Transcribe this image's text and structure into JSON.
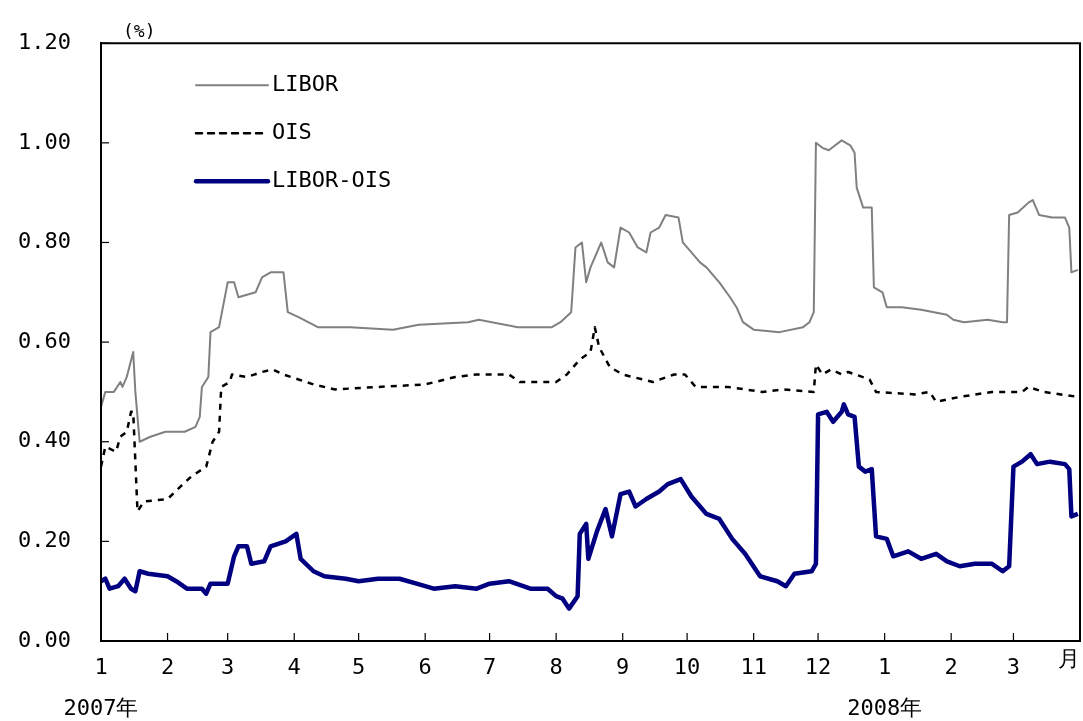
{
  "chart_data": {
    "type": "line",
    "ylabel": "(%)",
    "xlabel": "月",
    "xlim": [
      "2007-01-01",
      "2008-04-01"
    ],
    "xticks": [
      {
        "value": "2007-01-01",
        "label": "1\n2007年"
      },
      {
        "value": "2007-02-01",
        "label": "2"
      },
      {
        "value": "2007-03-01",
        "label": "3"
      },
      {
        "value": "2007-04-01",
        "label": "4"
      },
      {
        "value": "2007-05-01",
        "label": "5"
      },
      {
        "value": "2007-06-01",
        "label": "6"
      },
      {
        "value": "2007-07-01",
        "label": "7"
      },
      {
        "value": "2007-08-01",
        "label": "8"
      },
      {
        "value": "2007-09-01",
        "label": "9"
      },
      {
        "value": "2007-10-01",
        "label": "10"
      },
      {
        "value": "2007-11-01",
        "label": "11"
      },
      {
        "value": "2007-12-01",
        "label": "12"
      },
      {
        "value": "2008-01-01",
        "label": "1\n2008年"
      },
      {
        "value": "2008-02-01",
        "label": "2"
      },
      {
        "value": "2008-03-01",
        "label": "3"
      }
    ],
    "ylim": [
      0,
      1.2
    ],
    "yticks": [
      {
        "value": 0,
        "label": "0.00"
      },
      {
        "value": 0.2,
        "label": "0.20"
      },
      {
        "value": 0.4,
        "label": "0.40"
      },
      {
        "value": 0.6,
        "label": "0.60"
      },
      {
        "value": 0.8,
        "label": "0.80"
      },
      {
        "value": 1.0,
        "label": "1.00"
      },
      {
        "value": 1.2,
        "label": "1.20"
      }
    ],
    "grid": false,
    "legend": "top left",
    "marker": "none",
    "series": [
      {
        "name": "LIBOR",
        "color": "#808080",
        "line_style": "solid",
        "x": [
          "2007-01-01",
          "2007-01-03",
          "2007-01-07",
          "2007-01-10",
          "2007-01-11",
          "2007-01-13",
          "2007-01-16",
          "2007-01-17",
          "2007-01-19",
          "2007-01-24",
          "2007-01-31",
          "2007-02-09",
          "2007-02-14",
          "2007-02-16",
          "2007-02-17",
          "2007-02-20",
          "2007-02-21",
          "2007-02-25",
          "2007-03-01",
          "2007-03-04",
          "2007-03-06",
          "2007-03-14",
          "2007-03-17",
          "2007-03-21",
          "2007-03-27",
          "2007-03-29",
          "2007-04-03",
          "2007-04-12",
          "2007-04-27",
          "2007-05-17",
          "2007-05-29",
          "2007-06-21",
          "2007-06-26",
          "2007-07-14",
          "2007-07-30",
          "2007-08-03",
          "2007-08-08",
          "2007-08-10",
          "2007-08-13",
          "2007-08-15",
          "2007-08-17",
          "2007-08-22",
          "2007-08-25",
          "2007-08-28",
          "2007-08-31",
          "2007-09-04",
          "2007-09-08",
          "2007-09-12",
          "2007-09-14",
          "2007-09-18",
          "2007-09-21",
          "2007-09-27",
          "2007-09-29",
          "2007-10-03",
          "2007-10-07",
          "2007-10-10",
          "2007-10-16",
          "2007-10-21",
          "2007-10-24",
          "2007-10-27",
          "2007-11-01",
          "2007-11-13",
          "2007-11-24",
          "2007-11-27",
          "2007-11-29",
          "2007-11-30",
          "2007-12-03",
          "2007-12-06",
          "2007-12-09",
          "2007-12-12",
          "2007-12-16",
          "2007-12-18",
          "2007-12-19",
          "2007-12-22",
          "2007-12-26",
          "2007-12-27",
          "2007-12-31",
          "2008-01-02",
          "2008-01-09",
          "2008-01-18",
          "2008-01-30",
          "2008-02-02",
          "2008-02-07",
          "2008-02-18",
          "2008-02-25",
          "2008-02-27",
          "2008-02-28",
          "2008-03-03",
          "2008-03-08",
          "2008-03-10",
          "2008-03-13",
          "2008-03-19",
          "2008-03-25",
          "2008-03-27",
          "2008-03-28",
          "2008-03-31"
        ],
        "values": [
          0.47,
          0.5,
          0.5,
          0.52,
          0.51,
          0.53,
          0.58,
          0.5,
          0.4,
          0.41,
          0.42,
          0.42,
          0.43,
          0.45,
          0.51,
          0.53,
          0.62,
          0.63,
          0.72,
          0.72,
          0.69,
          0.7,
          0.73,
          0.74,
          0.74,
          0.66,
          0.65,
          0.63,
          0.63,
          0.625,
          0.635,
          0.64,
          0.645,
          0.63,
          0.63,
          0.64,
          0.66,
          0.79,
          0.8,
          0.72,
          0.75,
          0.8,
          0.76,
          0.75,
          0.83,
          0.82,
          0.79,
          0.78,
          0.82,
          0.83,
          0.855,
          0.85,
          0.8,
          0.78,
          0.76,
          0.75,
          0.72,
          0.69,
          0.67,
          0.64,
          0.625,
          0.62,
          0.63,
          0.64,
          0.66,
          1.0,
          0.99,
          0.985,
          0.995,
          1.005,
          0.995,
          0.98,
          0.91,
          0.87,
          0.87,
          0.71,
          0.7,
          0.67,
          0.67,
          0.665,
          0.655,
          0.645,
          0.64,
          0.645,
          0.64,
          0.64,
          0.855,
          0.86,
          0.88,
          0.885,
          0.855,
          0.85,
          0.85,
          0.83,
          0.74,
          0.745
        ]
      },
      {
        "name": "OIS",
        "color": "#000000",
        "line_style": "dashed",
        "x": [
          "2007-01-01",
          "2007-01-03",
          "2007-01-08",
          "2007-01-10",
          "2007-01-13",
          "2007-01-15",
          "2007-01-16",
          "2007-01-18",
          "2007-01-21",
          "2007-02-01",
          "2007-02-07",
          "2007-02-12",
          "2007-02-19",
          "2007-02-22",
          "2007-02-25",
          "2007-02-26",
          "2007-03-02",
          "2007-03-03",
          "2007-03-10",
          "2007-03-17",
          "2007-03-22",
          "2007-03-27",
          "2007-04-10",
          "2007-04-20",
          "2007-05-10",
          "2007-06-01",
          "2007-06-15",
          "2007-06-25",
          "2007-07-10",
          "2007-07-15",
          "2007-08-01",
          "2007-08-06",
          "2007-08-12",
          "2007-08-17",
          "2007-08-19",
          "2007-08-21",
          "2007-08-26",
          "2007-09-01",
          "2007-09-15",
          "2007-09-25",
          "2007-09-30",
          "2007-10-05",
          "2007-10-20",
          "2007-11-05",
          "2007-11-15",
          "2007-11-29",
          "2007-11-30",
          "2007-12-03",
          "2007-12-07",
          "2007-12-12",
          "2007-12-15",
          "2007-12-25",
          "2007-12-28",
          "2008-01-15",
          "2008-01-22",
          "2008-01-25",
          "2008-02-05",
          "2008-02-20",
          "2008-03-05",
          "2008-03-08",
          "2008-03-15",
          "2008-03-31"
        ],
        "values": [
          0.35,
          0.39,
          0.38,
          0.41,
          0.42,
          0.46,
          0.46,
          0.26,
          0.28,
          0.285,
          0.31,
          0.33,
          0.35,
          0.4,
          0.42,
          0.51,
          0.52,
          0.535,
          0.53,
          0.54,
          0.545,
          0.535,
          0.515,
          0.505,
          0.51,
          0.515,
          0.53,
          0.535,
          0.535,
          0.52,
          0.52,
          0.535,
          0.565,
          0.58,
          0.63,
          0.59,
          0.55,
          0.535,
          0.52,
          0.535,
          0.535,
          0.51,
          0.51,
          0.5,
          0.505,
          0.5,
          0.555,
          0.535,
          0.545,
          0.535,
          0.54,
          0.525,
          0.5,
          0.495,
          0.5,
          0.48,
          0.49,
          0.5,
          0.5,
          0.51,
          0.5,
          0.49
        ]
      },
      {
        "name": "LIBOR-OIS",
        "color": "#000080",
        "line_style": "solid",
        "x": [
          "2007-01-01",
          "2007-01-03",
          "2007-01-05",
          "2007-01-09",
          "2007-01-12",
          "2007-01-15",
          "2007-01-17",
          "2007-01-19",
          "2007-01-23",
          "2007-02-01",
          "2007-02-05",
          "2007-02-10",
          "2007-02-17",
          "2007-02-19",
          "2007-02-21",
          "2007-03-01",
          "2007-03-04",
          "2007-03-06",
          "2007-03-10",
          "2007-03-12",
          "2007-03-18",
          "2007-03-21",
          "2007-03-28",
          "2007-04-02",
          "2007-04-04",
          "2007-04-10",
          "2007-04-15",
          "2007-04-25",
          "2007-05-01",
          "2007-05-10",
          "2007-05-20",
          "2007-05-28",
          "2007-06-05",
          "2007-06-15",
          "2007-06-25",
          "2007-07-01",
          "2007-07-10",
          "2007-07-20",
          "2007-07-28",
          "2007-08-01",
          "2007-08-04",
          "2007-08-07",
          "2007-08-11",
          "2007-08-12",
          "2007-08-15",
          "2007-08-16",
          "2007-08-20",
          "2007-08-24",
          "2007-08-27",
          "2007-08-31",
          "2007-09-04",
          "2007-09-07",
          "2007-09-12",
          "2007-09-18",
          "2007-09-22",
          "2007-09-28",
          "2007-10-03",
          "2007-10-10",
          "2007-10-16",
          "2007-10-22",
          "2007-10-28",
          "2007-11-04",
          "2007-11-12",
          "2007-11-16",
          "2007-11-20",
          "2007-11-28",
          "2007-11-30",
          "2007-12-01",
          "2007-12-05",
          "2007-12-08",
          "2007-12-12",
          "2007-12-13",
          "2007-12-15",
          "2007-12-18",
          "2007-12-20",
          "2007-12-23",
          "2007-12-26",
          "2007-12-28",
          "2008-01-02",
          "2008-01-05",
          "2008-01-12",
          "2008-01-18",
          "2008-01-25",
          "2008-01-30",
          "2008-02-05",
          "2008-02-12",
          "2008-02-20",
          "2008-02-25",
          "2008-02-28",
          "2008-03-01",
          "2008-03-05",
          "2008-03-09",
          "2008-03-12",
          "2008-03-18",
          "2008-03-25",
          "2008-03-27",
          "2008-03-28",
          "2008-03-31"
        ],
        "values": [
          0.12,
          0.125,
          0.105,
          0.11,
          0.125,
          0.105,
          0.1,
          0.14,
          0.135,
          0.13,
          0.12,
          0.105,
          0.105,
          0.095,
          0.115,
          0.115,
          0.17,
          0.19,
          0.19,
          0.155,
          0.16,
          0.19,
          0.2,
          0.215,
          0.165,
          0.14,
          0.13,
          0.125,
          0.12,
          0.125,
          0.125,
          0.115,
          0.105,
          0.11,
          0.105,
          0.115,
          0.12,
          0.105,
          0.105,
          0.09,
          0.085,
          0.065,
          0.09,
          0.215,
          0.235,
          0.165,
          0.22,
          0.265,
          0.21,
          0.295,
          0.3,
          0.27,
          0.285,
          0.3,
          0.315,
          0.325,
          0.29,
          0.255,
          0.245,
          0.205,
          0.175,
          0.13,
          0.12,
          0.11,
          0.135,
          0.14,
          0.155,
          0.455,
          0.46,
          0.44,
          0.46,
          0.475,
          0.455,
          0.45,
          0.35,
          0.34,
          0.345,
          0.21,
          0.205,
          0.17,
          0.18,
          0.165,
          0.175,
          0.16,
          0.15,
          0.155,
          0.155,
          0.14,
          0.15,
          0.35,
          0.36,
          0.375,
          0.355,
          0.36,
          0.355,
          0.345,
          0.25,
          0.255
        ]
      }
    ]
  }
}
